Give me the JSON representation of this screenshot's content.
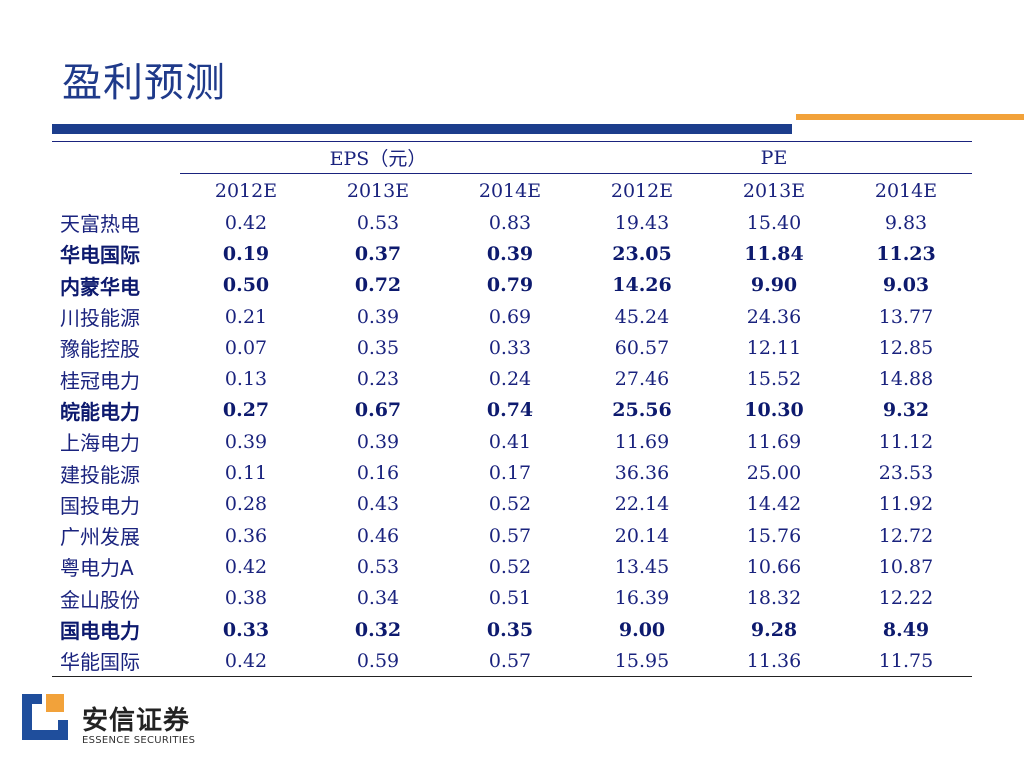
{
  "title": "盈利预测",
  "table": {
    "group_headers": {
      "eps": "EPS（元）",
      "pe": "PE"
    },
    "years": [
      "2012E",
      "2013E",
      "2014E",
      "2012E",
      "2013E",
      "2014E"
    ],
    "rows": [
      {
        "name": "天富热电",
        "values": [
          "0.42",
          "0.53",
          "0.83",
          "19.43",
          "15.40",
          "9.83"
        ],
        "bold": false
      },
      {
        "name": "华电国际",
        "values": [
          "0.19",
          "0.37",
          "0.39",
          "23.05",
          "11.84",
          "11.23"
        ],
        "bold": true
      },
      {
        "name": "内蒙华电",
        "values": [
          "0.50",
          "0.72",
          "0.79",
          "14.26",
          "9.90",
          "9.03"
        ],
        "bold": true
      },
      {
        "name": "川投能源",
        "values": [
          "0.21",
          "0.39",
          "0.69",
          "45.24",
          "24.36",
          "13.77"
        ],
        "bold": false
      },
      {
        "name": "豫能控股",
        "values": [
          "0.07",
          "0.35",
          "0.33",
          "60.57",
          "12.11",
          "12.85"
        ],
        "bold": false
      },
      {
        "name": "桂冠电力",
        "values": [
          "0.13",
          "0.23",
          "0.24",
          "27.46",
          "15.52",
          "14.88"
        ],
        "bold": false
      },
      {
        "name": "皖能电力",
        "values": [
          "0.27",
          "0.67",
          "0.74",
          "25.56",
          "10.30",
          "9.32"
        ],
        "bold": true
      },
      {
        "name": "上海电力",
        "values": [
          "0.39",
          "0.39",
          "0.41",
          "11.69",
          "11.69",
          "11.12"
        ],
        "bold": false
      },
      {
        "name": "建投能源",
        "values": [
          "0.11",
          "0.16",
          "0.17",
          "36.36",
          "25.00",
          "23.53"
        ],
        "bold": false
      },
      {
        "name": "国投电力",
        "values": [
          "0.28",
          "0.43",
          "0.52",
          "22.14",
          "14.42",
          "11.92"
        ],
        "bold": false
      },
      {
        "name": "广州发展",
        "values": [
          "0.36",
          "0.46",
          "0.57",
          "20.14",
          "15.76",
          "12.72"
        ],
        "bold": false
      },
      {
        "name": "粤电力A",
        "values": [
          "0.42",
          "0.53",
          "0.52",
          "13.45",
          "10.66",
          "10.87"
        ],
        "bold": false
      },
      {
        "name": "金山股份",
        "values": [
          "0.38",
          "0.34",
          "0.51",
          "16.39",
          "18.32",
          "12.22"
        ],
        "bold": false
      },
      {
        "name": "国电电力",
        "values": [
          "0.33",
          "0.32",
          "0.35",
          "9.00",
          "9.28",
          "8.49"
        ],
        "bold": true
      },
      {
        "name": "华能国际",
        "values": [
          "0.42",
          "0.59",
          "0.57",
          "15.95",
          "11.36",
          "11.75"
        ],
        "bold": false
      }
    ]
  },
  "logo": {
    "cn": "安信证券",
    "en": "ESSENCE SECURITIES"
  },
  "colors": {
    "title": "#1f3a8a",
    "bar_blue": "#1c3d8c",
    "bar_orange": "#f2a23a",
    "logo_blue": "#1f4e9c",
    "logo_orange": "#f2a23a"
  }
}
